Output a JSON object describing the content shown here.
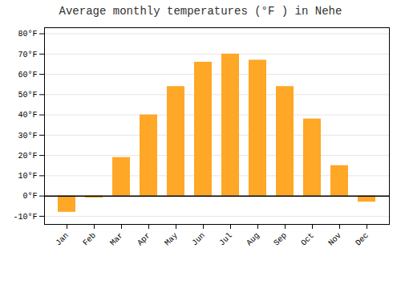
{
  "chart_data": {
    "type": "bar",
    "title": "Average monthly temperatures (°F ) in Nehe",
    "categories": [
      "Jan",
      "Feb",
      "Mar",
      "Apr",
      "May",
      "Jun",
      "Jul",
      "Aug",
      "Sep",
      "Oct",
      "Nov",
      "Dec"
    ],
    "values": [
      -8,
      -1,
      19,
      40,
      54,
      66,
      70,
      67,
      54,
      38,
      15,
      -3
    ],
    "color": "#FFA726",
    "ylim": [
      -14,
      83
    ],
    "yticks": [
      {
        "value": -10,
        "label": "-10°F"
      },
      {
        "value": 0,
        "label": "0°F"
      },
      {
        "value": 10,
        "label": "10°F"
      },
      {
        "value": 20,
        "label": "20°F"
      },
      {
        "value": 30,
        "label": "30°F"
      },
      {
        "value": 40,
        "label": "40°F"
      },
      {
        "value": 50,
        "label": "50°F"
      },
      {
        "value": 60,
        "label": "60°F"
      },
      {
        "value": 70,
        "label": "70°F"
      },
      {
        "value": 80,
        "label": "80°F"
      }
    ],
    "grid": true
  }
}
